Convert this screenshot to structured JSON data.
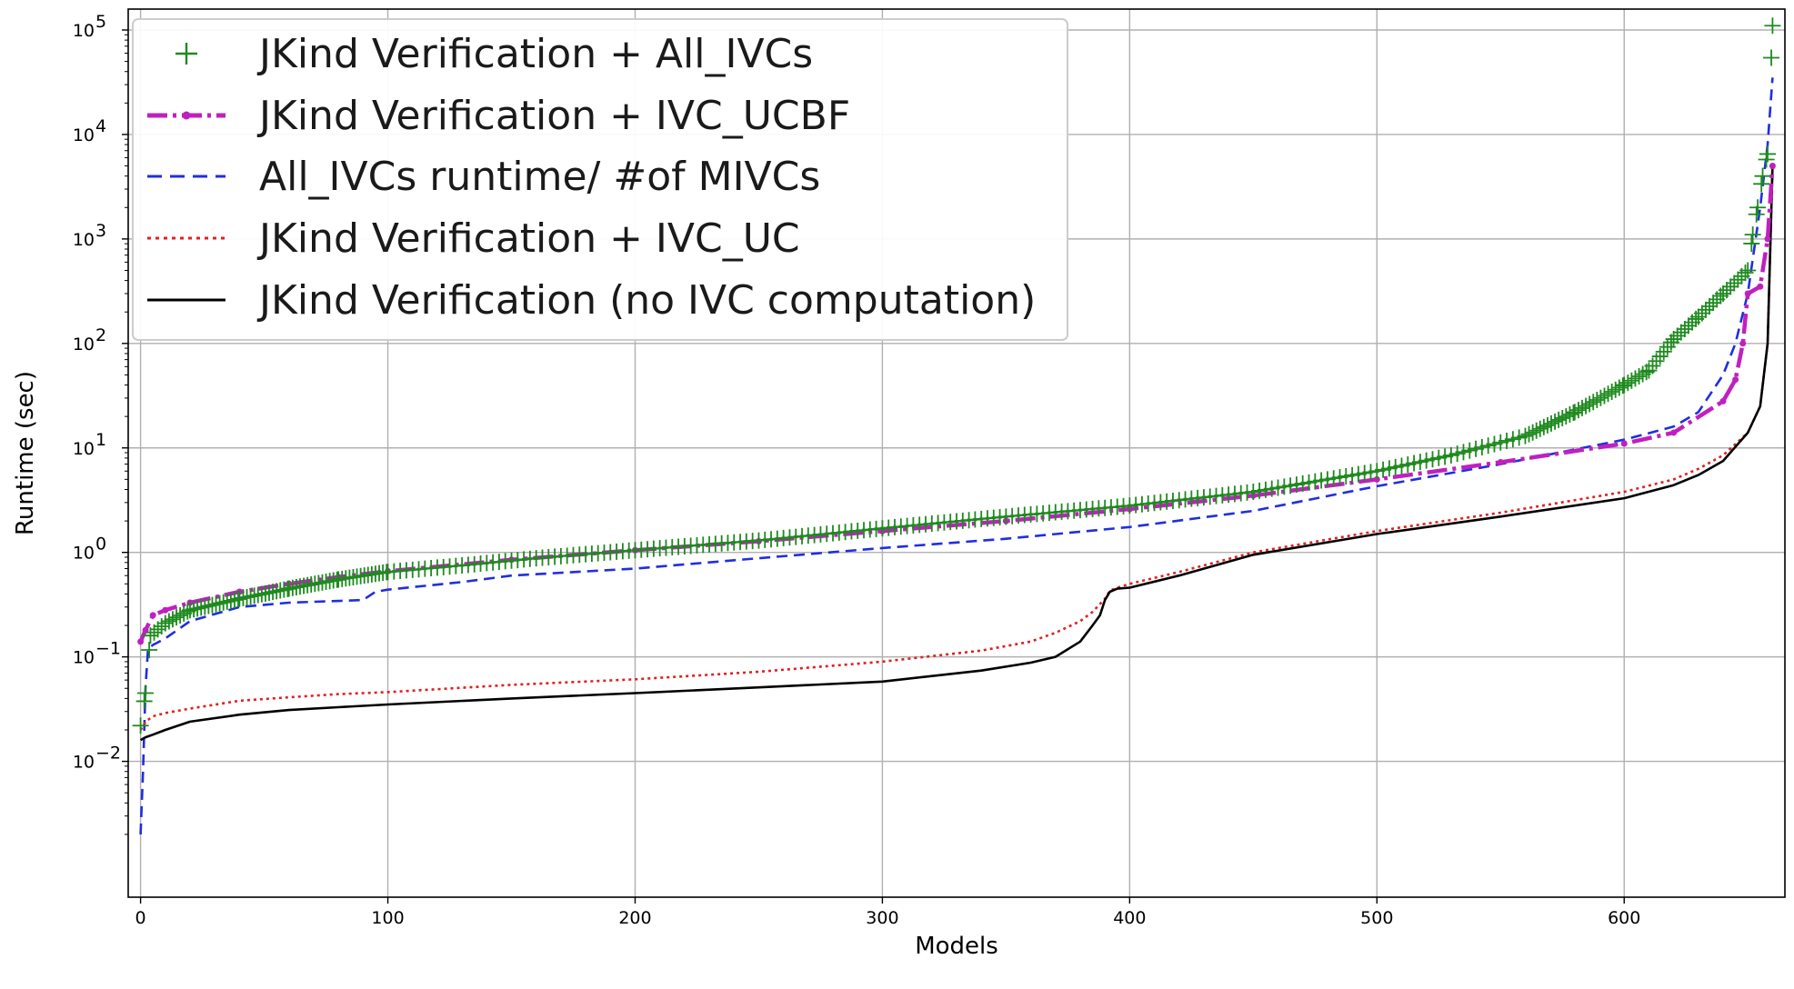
{
  "chart_data": {
    "type": "line",
    "title": "",
    "xlabel": "Models",
    "ylabel": "Runtime (sec)",
    "xlim": [
      -5,
      665
    ],
    "ylim_log10": [
      -3.3,
      5.2
    ],
    "yscale": "log",
    "grid": true,
    "legend_position": "top-left",
    "x_ticks": [
      0,
      100,
      200,
      300,
      400,
      500,
      600
    ],
    "x_tick_labels": [
      "0",
      "100",
      "200",
      "300",
      "400",
      "500",
      "600"
    ],
    "y_ticks_log10": [
      -2,
      -1,
      0,
      1,
      2,
      3,
      4,
      5
    ],
    "y_tick_labels": [
      "10",
      "10",
      "10",
      "10",
      "10",
      "10",
      "10",
      "10"
    ],
    "y_tick_exponents": [
      "−2",
      "−1",
      "0",
      "1",
      "2",
      "3",
      "4",
      "5"
    ],
    "series": [
      {
        "name": "JKind Verification + All_IVCs",
        "style": "marker-plus",
        "color": "#1e8a1e",
        "x": [
          0,
          2,
          4,
          10,
          20,
          40,
          60,
          80,
          100,
          130,
          160,
          200,
          250,
          300,
          350,
          400,
          450,
          500,
          530,
          560,
          580,
          600,
          610,
          620,
          630,
          640,
          650,
          652,
          654,
          656,
          658,
          660
        ],
        "values": [
          0.022,
          0.045,
          0.16,
          0.21,
          0.28,
          0.36,
          0.45,
          0.55,
          0.65,
          0.75,
          0.88,
          1.05,
          1.3,
          1.7,
          2.2,
          2.8,
          3.8,
          6.0,
          8.5,
          13,
          22,
          40,
          55,
          110,
          180,
          300,
          500,
          1100,
          2000,
          4000,
          6500,
          110000
        ]
      },
      {
        "name": "JKind Verification + IVC_UCBF",
        "style": "dash-dot",
        "color": "#c020c0",
        "x": [
          0,
          2,
          5,
          10,
          20,
          40,
          60,
          80,
          100,
          150,
          200,
          250,
          300,
          350,
          400,
          450,
          500,
          550,
          600,
          620,
          640,
          645,
          648,
          650,
          655,
          658,
          660
        ],
        "values": [
          0.14,
          0.18,
          0.25,
          0.28,
          0.33,
          0.42,
          0.5,
          0.58,
          0.66,
          0.85,
          1.05,
          1.28,
          1.6,
          2.0,
          2.6,
          3.5,
          5.0,
          7.3,
          11,
          14,
          28,
          45,
          100,
          300,
          350,
          1000,
          5000
        ]
      },
      {
        "name": "All_IVCs runtime/ #of MIVCs",
        "style": "dashed",
        "color": "#1f2fe0",
        "x": [
          0,
          1,
          2,
          3,
          5,
          10,
          20,
          40,
          60,
          90,
          95,
          100,
          130,
          150,
          200,
          250,
          300,
          350,
          400,
          450,
          500,
          550,
          600,
          620,
          630,
          640,
          645,
          650,
          655,
          658,
          660
        ],
        "values": [
          0.002,
          0.008,
          0.05,
          0.12,
          0.13,
          0.15,
          0.22,
          0.3,
          0.33,
          0.35,
          0.42,
          0.44,
          0.52,
          0.6,
          0.7,
          0.88,
          1.1,
          1.35,
          1.75,
          2.5,
          4.3,
          7.0,
          12,
          16,
          22,
          50,
          100,
          300,
          2000,
          8000,
          35000
        ]
      },
      {
        "name": "JKind Verification + IVC_UC",
        "style": "dotted",
        "color": "#e02020",
        "x": [
          0,
          2,
          5,
          10,
          20,
          40,
          60,
          80,
          100,
          150,
          200,
          250,
          300,
          340,
          360,
          370,
          380,
          385,
          390,
          392,
          395,
          400,
          420,
          450,
          500,
          550,
          600,
          620,
          630,
          640,
          650,
          655,
          658,
          660
        ],
        "values": [
          0.02,
          0.024,
          0.027,
          0.029,
          0.032,
          0.038,
          0.041,
          0.044,
          0.046,
          0.054,
          0.061,
          0.072,
          0.09,
          0.115,
          0.14,
          0.17,
          0.22,
          0.27,
          0.36,
          0.43,
          0.46,
          0.5,
          0.65,
          1.0,
          1.6,
          2.4,
          3.8,
          5.0,
          6.3,
          8.5,
          14,
          25,
          100,
          5000
        ]
      },
      {
        "name": "JKind Verification (no IVC computation)",
        "style": "solid",
        "color": "#000000",
        "x": [
          0,
          2,
          5,
          10,
          20,
          40,
          60,
          80,
          100,
          150,
          200,
          250,
          300,
          340,
          360,
          370,
          380,
          385,
          388,
          390,
          392,
          395,
          400,
          420,
          450,
          500,
          550,
          600,
          620,
          630,
          640,
          650,
          655,
          658,
          660
        ],
        "values": [
          0.016,
          0.017,
          0.018,
          0.02,
          0.024,
          0.028,
          0.031,
          0.033,
          0.035,
          0.04,
          0.045,
          0.051,
          0.058,
          0.074,
          0.088,
          0.1,
          0.14,
          0.2,
          0.25,
          0.35,
          0.42,
          0.45,
          0.46,
          0.6,
          0.95,
          1.5,
          2.2,
          3.3,
          4.4,
          5.5,
          7.5,
          14,
          25,
          100,
          5000
        ]
      }
    ]
  }
}
